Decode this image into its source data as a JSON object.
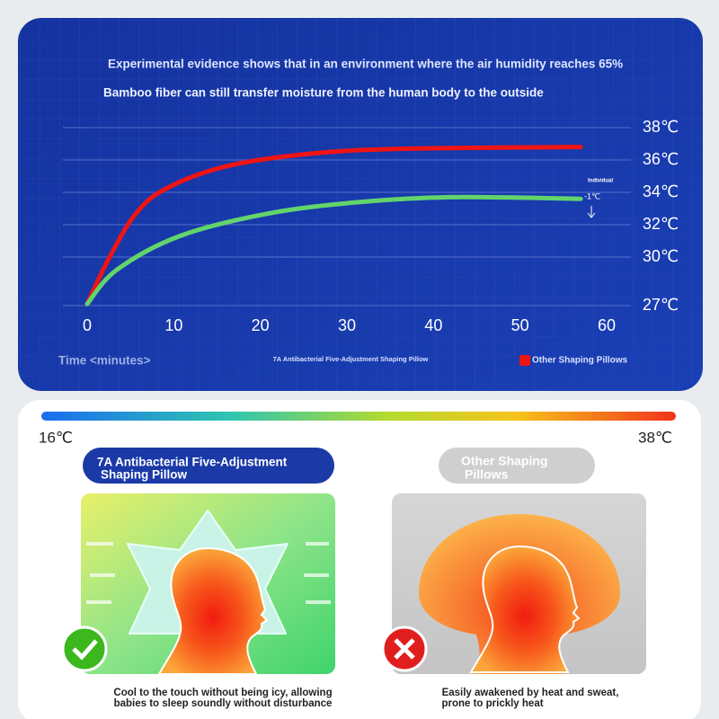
{
  "chart_data": {
    "type": "line",
    "title": "Experimental evidence shows that in an environment where the air humidity reaches 65%",
    "subtitle": "Bamboo fiber can still transfer moisture from the human body to the outside",
    "x_label": "Time <minutes>",
    "xlim": [
      0,
      60
    ],
    "xticks": [
      0,
      10,
      20,
      30,
      40,
      50,
      60
    ],
    "ylim": [
      27,
      38
    ],
    "yticks": [
      {
        "value": 27,
        "label": "27℃"
      },
      {
        "value": 30,
        "label": "30℃"
      },
      {
        "value": 32,
        "label": "32℃"
      },
      {
        "value": 34,
        "label": "34℃"
      },
      {
        "value": 36,
        "label": "36℃"
      },
      {
        "value": 38,
        "label": "38℃"
      }
    ],
    "grid": true,
    "series": [
      {
        "name": "Other Shaping Pillows",
        "color": "#f01414",
        "x": [
          0,
          2.4,
          5.5,
          9,
          16,
          26,
          37,
          57
        ],
        "values": [
          27.1,
          29.8,
          32.6,
          34.2,
          35.6,
          36.4,
          36.7,
          36.8
        ]
      },
      {
        "name": "7A Antibacterial Five-Adjustment Shaping Pillow",
        "color": "#62d46c",
        "x": [
          0,
          3.4,
          10.7,
          21,
          31.5,
          42,
          57
        ],
        "values": [
          27.1,
          29.2,
          31.3,
          32.7,
          33.4,
          33.7,
          33.6
        ]
      }
    ],
    "annotations": [
      "Individual",
      "-1℃"
    ]
  },
  "comparison": {
    "scale_min_label": "16℃",
    "scale_max_label": "38℃",
    "left": {
      "heading": [
        "7A Antibacterial Five-Adjustment",
        "Shaping Pillow"
      ],
      "caption": [
        "Cool to the touch without being icy, allowing",
        "babies to sleep soundly without disturbance"
      ]
    },
    "right": {
      "heading": [
        "Other Shaping",
        "Pillows"
      ],
      "caption": [
        "Easily awakened by heat and sweat,",
        "prone to prickly heat"
      ]
    }
  }
}
